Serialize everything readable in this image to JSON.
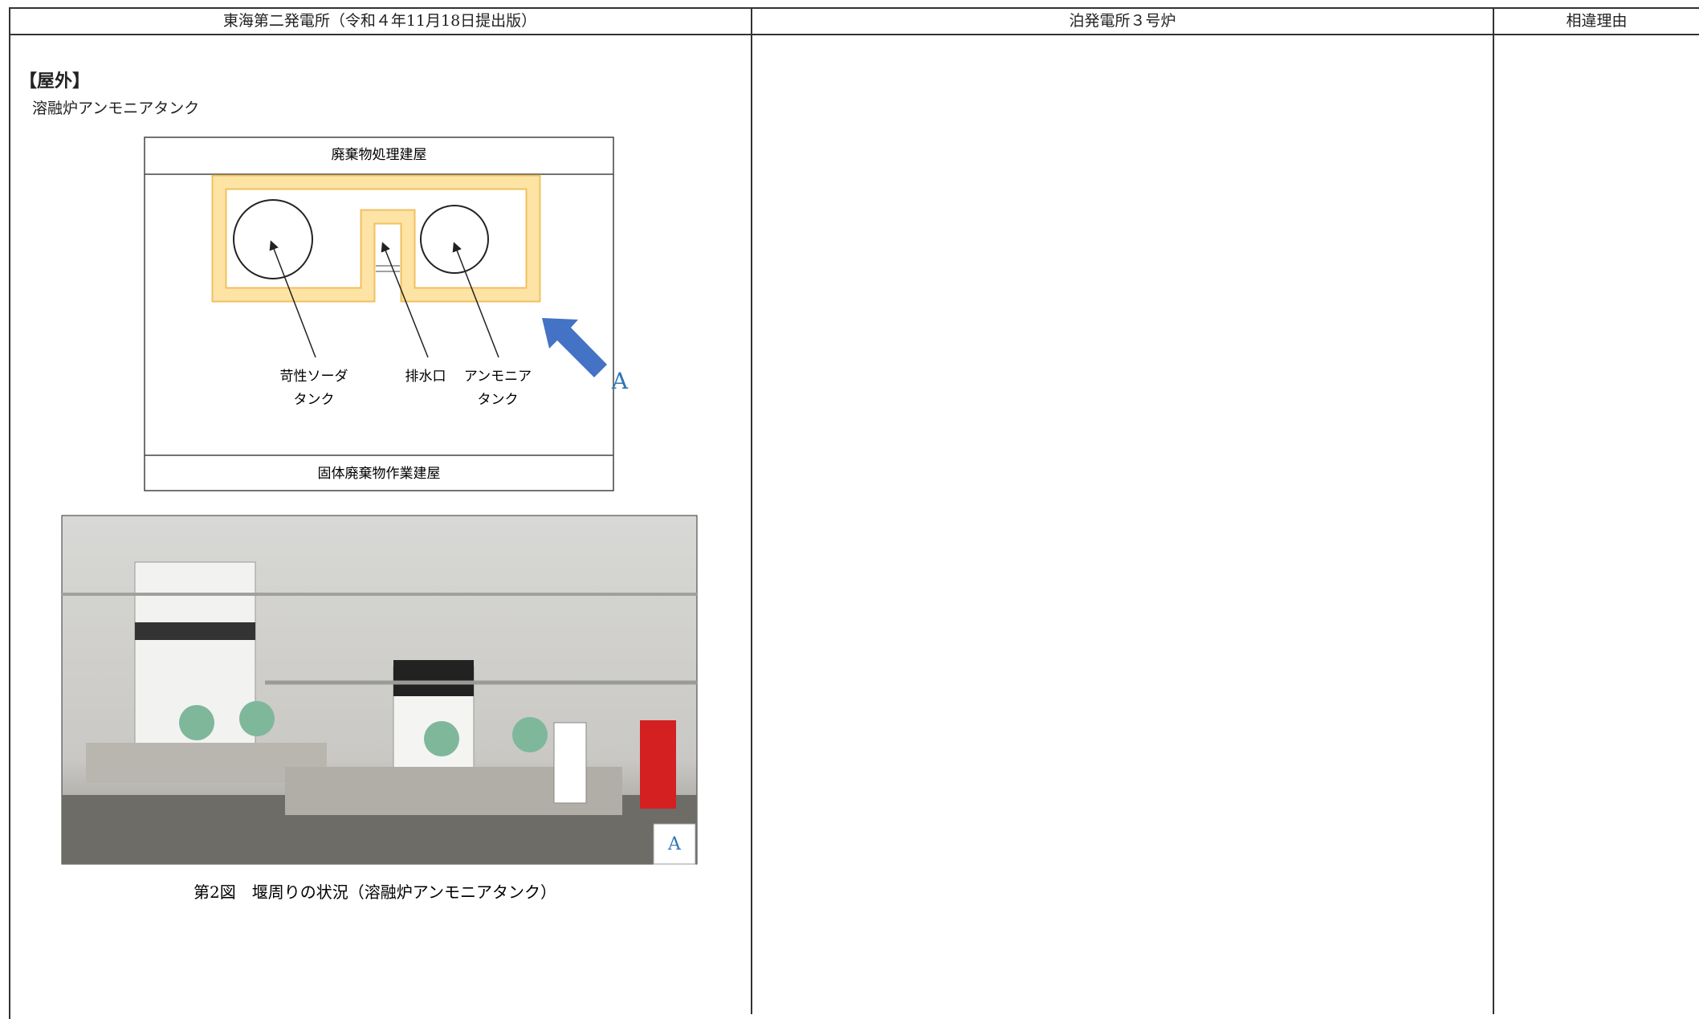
{
  "table": {
    "headers": [
      "東海第二発電所（令和４年11月18日提出版）",
      "泊発電所３号炉",
      "相違理由"
    ]
  },
  "content": {
    "section": "【屋外】",
    "subtitle": "溶融炉アンモニアタンク",
    "diagram": {
      "top_building": "廃棄物処理建屋",
      "bottom_building": "固体廃棄物作業建屋",
      "labels": [
        [
          "苛性ソーダ",
          "タンク"
        ],
        [
          "排水口"
        ],
        [
          "アンモニア",
          "タンク"
        ]
      ],
      "view_label": "A"
    },
    "photo_label": "A",
    "caption": "第2図　堰周りの状況（溶融炉アンモニアタンク）"
  }
}
